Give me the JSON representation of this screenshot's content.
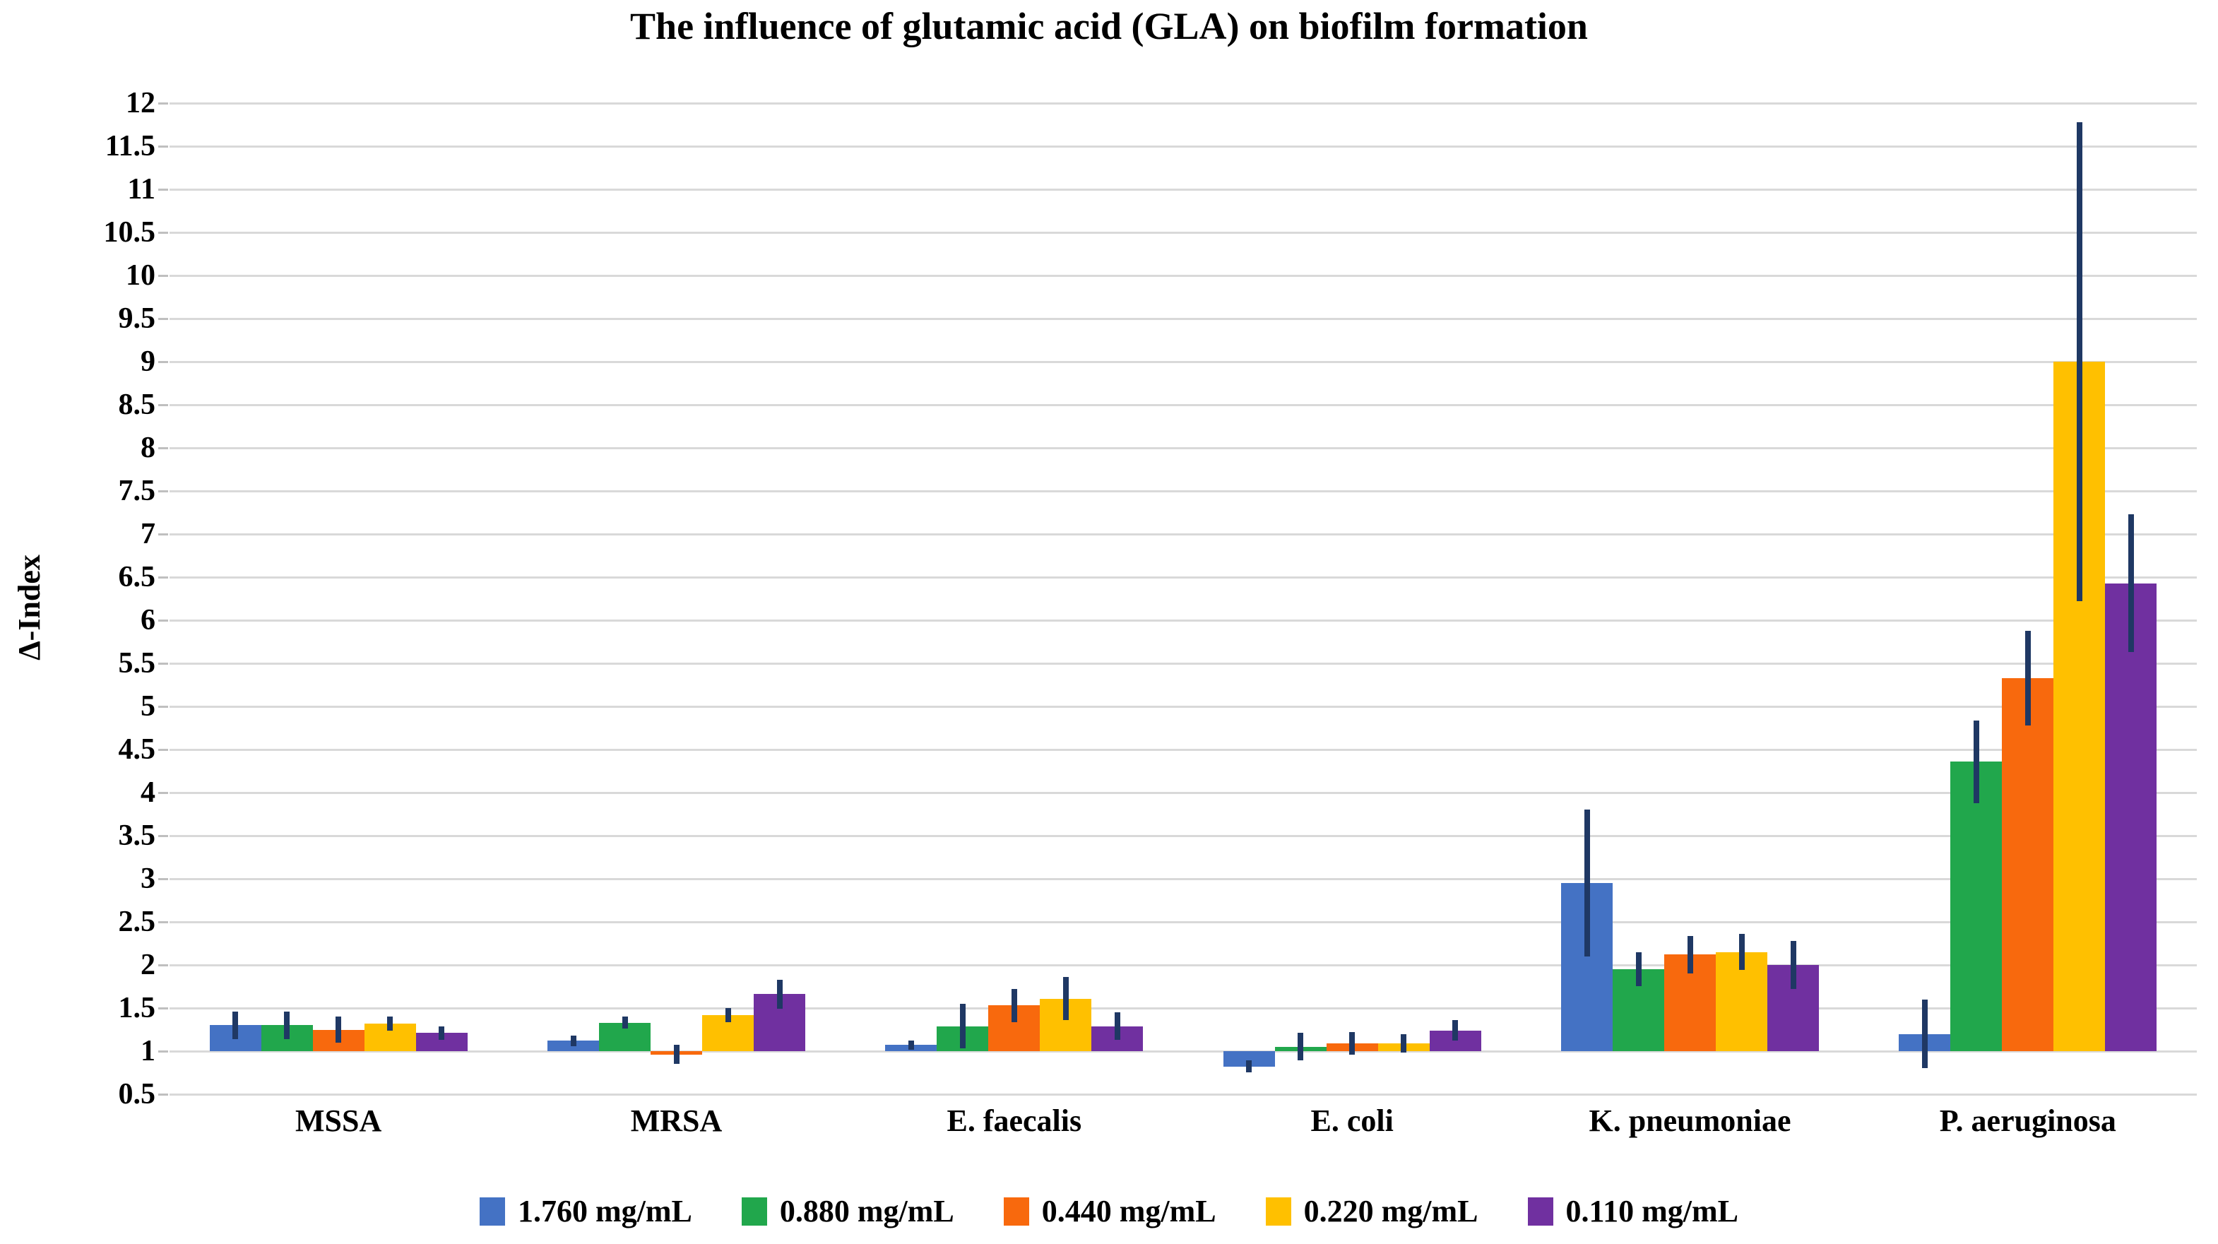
{
  "chart_data": {
    "type": "bar",
    "title": "The influence of glutamic acid (GLA) on biofilm formation",
    "ylabel": "Δ-Index",
    "xlabel": "",
    "ylim": [
      0.5,
      12
    ],
    "ytick_step": 0.5,
    "bar_baseline": 1.0,
    "grid": true,
    "legend_position": "bottom",
    "gridline_color": "#D9D9D9",
    "tick_color": "#BFBFBF",
    "error_bar_color": "#1F3864",
    "categories": [
      "MSSA",
      "MRSA",
      "E. faecalis",
      "E. coli",
      "K. pneumoniae",
      "P. aeruginosa"
    ],
    "series": [
      {
        "name": "1.760 mg/mL",
        "color": "#4472C4",
        "values": [
          1.3,
          1.12,
          1.07,
          0.82,
          2.95,
          1.2
        ],
        "errors": [
          0.16,
          0.06,
          0.05,
          0.07,
          0.85,
          0.4
        ]
      },
      {
        "name": "0.880 mg/mL",
        "color": "#21A74C",
        "values": [
          1.3,
          1.33,
          1.29,
          1.05,
          1.95,
          4.36
        ],
        "errors": [
          0.16,
          0.07,
          0.26,
          0.16,
          0.2,
          0.48
        ]
      },
      {
        "name": "0.440 mg/mL",
        "color": "#F8690D",
        "values": [
          1.25,
          0.96,
          1.53,
          1.09,
          2.12,
          5.33
        ],
        "errors": [
          0.15,
          0.11,
          0.19,
          0.13,
          0.22,
          0.55
        ]
      },
      {
        "name": "0.220 mg/mL",
        "color": "#FFC000",
        "values": [
          1.32,
          1.42,
          1.61,
          1.09,
          2.15,
          9.0
        ],
        "errors": [
          0.08,
          0.08,
          0.25,
          0.11,
          0.21,
          2.78
        ]
      },
      {
        "name": "0.110 mg/mL",
        "color": "#7030A0",
        "values": [
          1.21,
          1.66,
          1.29,
          1.24,
          2.0,
          6.43
        ],
        "errors": [
          0.08,
          0.17,
          0.16,
          0.12,
          0.28,
          0.8
        ]
      }
    ]
  }
}
